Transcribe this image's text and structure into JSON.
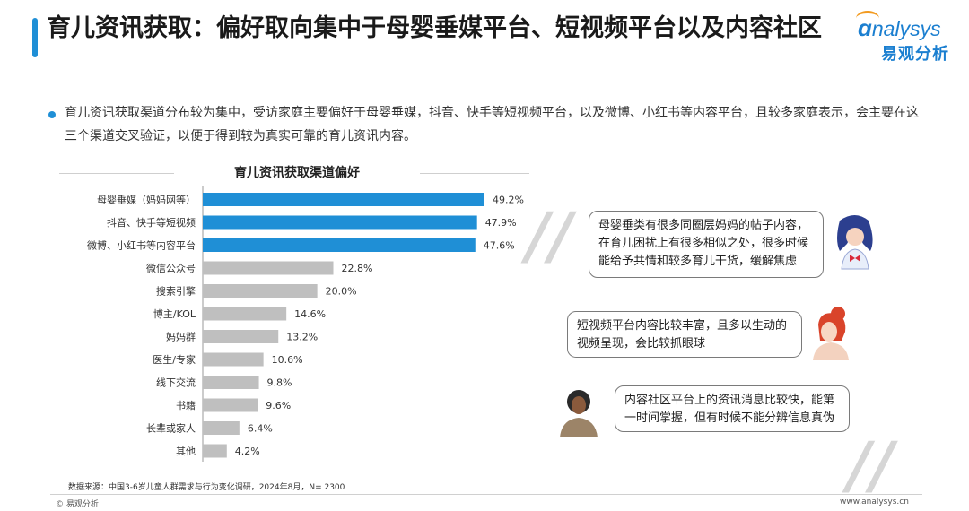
{
  "header": {
    "title": "育儿资讯获取：偏好取向集中于母婴垂媒平台、短视频平台以及内容社区",
    "logo_en": "nalysys",
    "logo_cn": "易观分析"
  },
  "summary": "育儿资讯获取渠道分布较为集中，受访家庭主要偏好于母婴垂媒，抖音、快手等短视频平台，以及微博、小红书等内容平台，且较多家庭表示，会主要在这三个渠道交叉验证，以便于得到较为真实可靠的育儿资讯内容。",
  "chart_data": {
    "type": "bar",
    "orientation": "horizontal",
    "title": "育儿资讯获取渠道偏好",
    "categories": [
      "母婴垂媒（妈妈网等）",
      "抖音、快手等短视频",
      "微博、小红书等内容平台",
      "微信公众号",
      "搜索引擎",
      "博主/KOL",
      "妈妈群",
      "医生/专家",
      "线下交流",
      "书籍",
      "长辈或家人",
      "其他"
    ],
    "values": [
      49.2,
      47.9,
      47.6,
      22.8,
      20.0,
      14.6,
      13.2,
      10.6,
      9.8,
      9.6,
      6.4,
      4.2
    ],
    "value_labels": [
      "49.2%",
      "47.9%",
      "47.6%",
      "22.8%",
      "20.0%",
      "14.6%",
      "13.2%",
      "10.6%",
      "9.8%",
      "9.6%",
      "6.4%",
      "4.2%"
    ],
    "highlight_count": 3,
    "colors": {
      "highlight": "#1f8fd6",
      "other": "#bfbfbf"
    },
    "xlim": [
      0,
      55
    ]
  },
  "quotes": [
    "母婴垂类有很多同圈层妈妈的帖子内容，在育儿困扰上有很多相似之处，很多时候能给予共情和较多育儿干货，缓解焦虑",
    "短视频平台内容比较丰富，且多以生动的视频呈现，会比较抓眼球",
    "内容社区平台上的资讯消息比较快，能第一时间掌握，但有时候不能分辨信息真伪"
  ],
  "quote_mark": "//",
  "source": "数据来源：中国3-6岁儿童人群需求与行为变化调研，2024年8月，N= 2300",
  "footer": {
    "left": "© 易观分析",
    "right": "www.analysys.cn"
  }
}
